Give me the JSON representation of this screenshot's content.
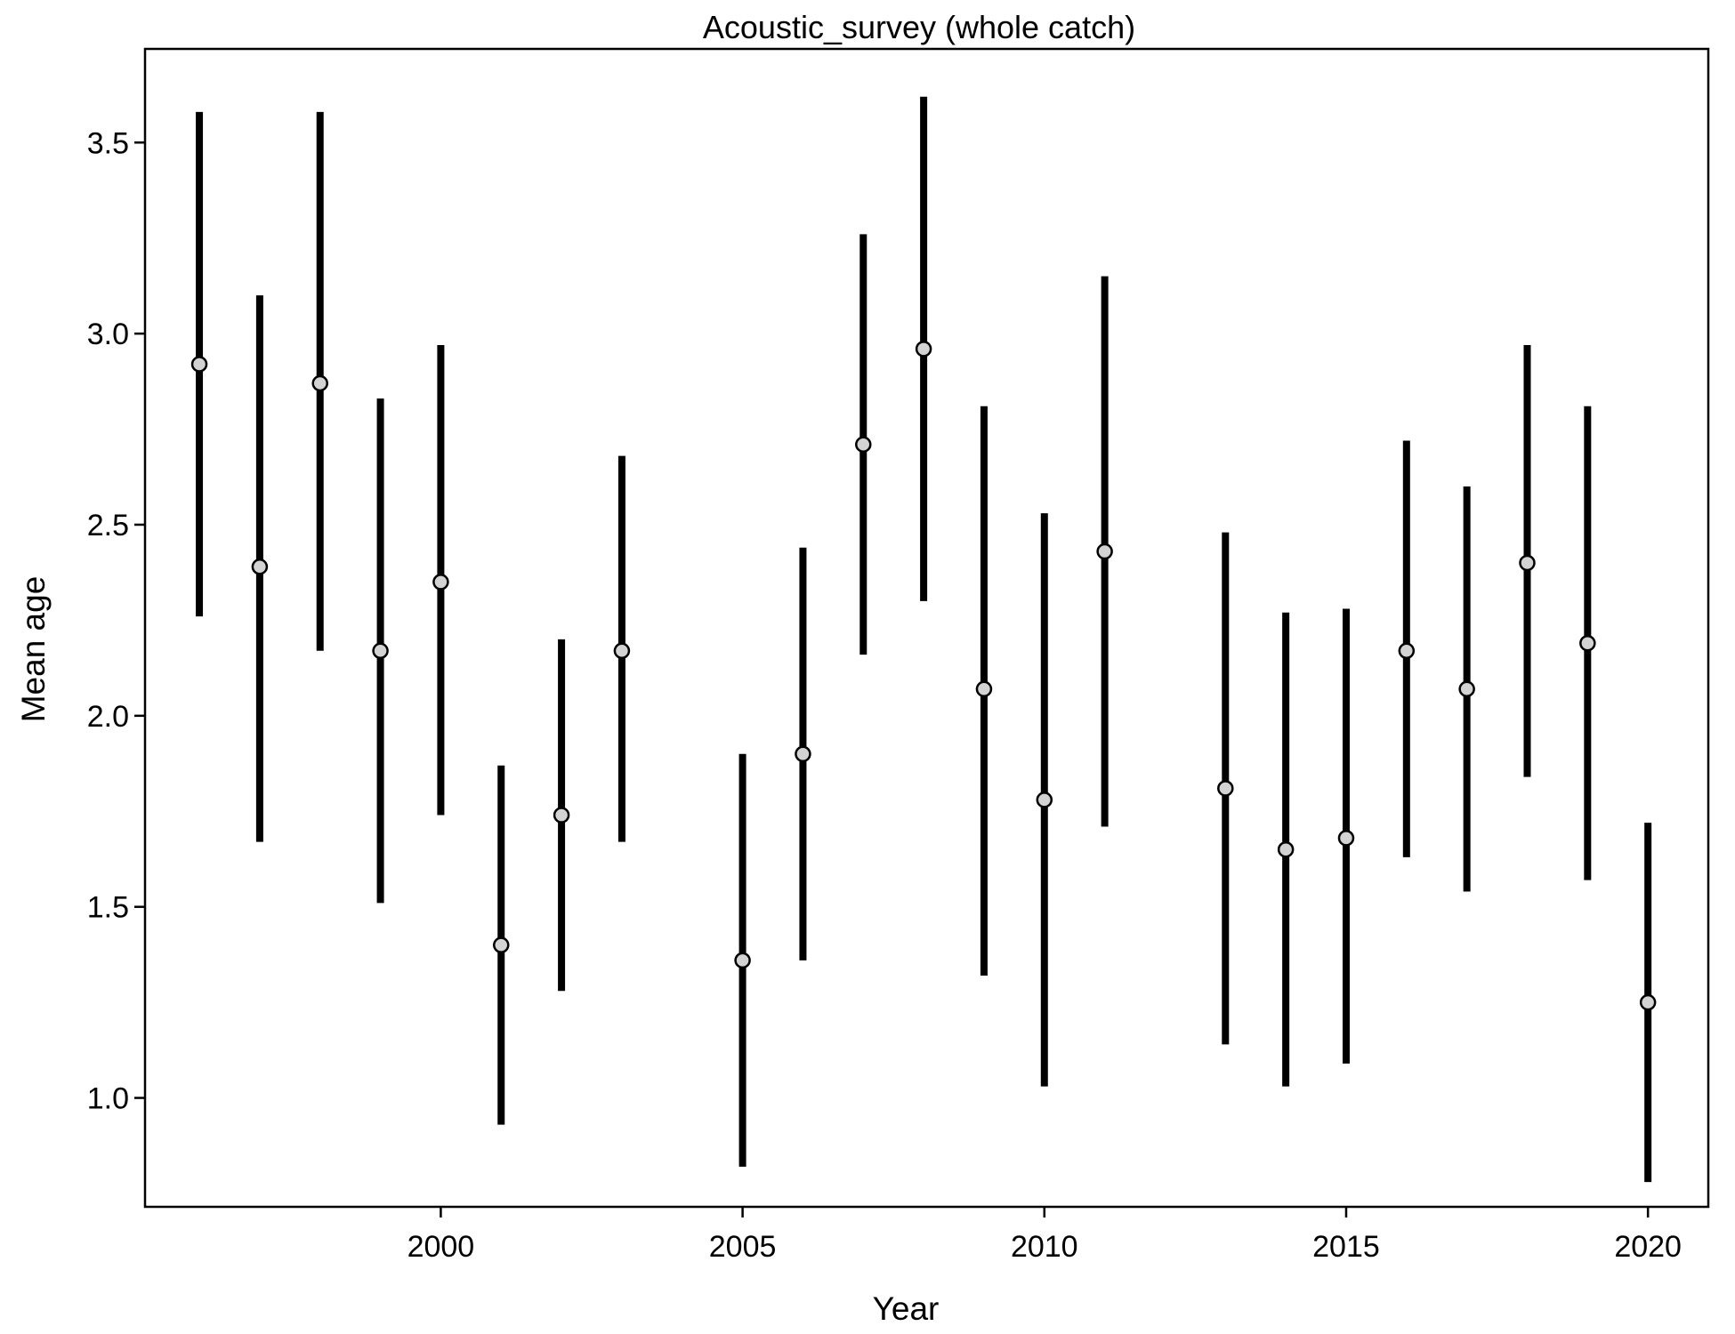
{
  "chart_data": {
    "type": "scatter",
    "subtype": "point-with-interval",
    "title": "Acoustic_survey (whole catch)",
    "xlabel": "Year",
    "ylabel": "Mean age",
    "xlim": [
      1995.1,
      2021.0
    ],
    "ylim": [
      0.715,
      3.745
    ],
    "x_ticks": [
      "2000",
      "2005",
      "2010",
      "2015",
      "2020"
    ],
    "y_ticks": [
      "1.0",
      "1.5",
      "2.0",
      "2.5",
      "3.0",
      "3.5"
    ],
    "grid": false,
    "legend": "none",
    "colors": {
      "interval": "#000000",
      "point_fill": "#d3d3d3",
      "point_stroke": "#000000"
    },
    "series": [
      {
        "points": [
          {
            "x": 1996,
            "y": 2.92,
            "lo": 2.26,
            "hi": 3.58
          },
          {
            "x": 1997,
            "y": 2.39,
            "lo": 1.67,
            "hi": 3.1
          },
          {
            "x": 1998,
            "y": 2.87,
            "lo": 2.17,
            "hi": 3.58
          },
          {
            "x": 1999,
            "y": 2.17,
            "lo": 1.51,
            "hi": 2.83
          },
          {
            "x": 2000,
            "y": 2.35,
            "lo": 1.74,
            "hi": 2.97
          },
          {
            "x": 2001,
            "y": 1.4,
            "lo": 0.93,
            "hi": 1.87
          },
          {
            "x": 2002,
            "y": 1.74,
            "lo": 1.28,
            "hi": 2.2
          },
          {
            "x": 2003,
            "y": 2.17,
            "lo": 1.67,
            "hi": 2.68
          },
          {
            "x": 2005,
            "y": 1.36,
            "lo": 0.82,
            "hi": 1.9
          },
          {
            "x": 2006,
            "y": 1.9,
            "lo": 1.36,
            "hi": 2.44
          },
          {
            "x": 2007,
            "y": 2.71,
            "lo": 2.16,
            "hi": 3.26
          },
          {
            "x": 2008,
            "y": 2.96,
            "lo": 2.3,
            "hi": 3.62
          },
          {
            "x": 2009,
            "y": 2.07,
            "lo": 1.32,
            "hi": 2.81
          },
          {
            "x": 2010,
            "y": 1.78,
            "lo": 1.03,
            "hi": 2.53
          },
          {
            "x": 2011,
            "y": 2.43,
            "lo": 1.71,
            "hi": 3.15
          },
          {
            "x": 2013,
            "y": 1.81,
            "lo": 1.14,
            "hi": 2.48
          },
          {
            "x": 2014,
            "y": 1.65,
            "lo": 1.03,
            "hi": 2.27
          },
          {
            "x": 2015,
            "y": 1.68,
            "lo": 1.09,
            "hi": 2.28
          },
          {
            "x": 2016,
            "y": 2.17,
            "lo": 1.63,
            "hi": 2.72
          },
          {
            "x": 2017,
            "y": 2.07,
            "lo": 1.54,
            "hi": 2.6
          },
          {
            "x": 2018,
            "y": 2.4,
            "lo": 1.84,
            "hi": 2.97
          },
          {
            "x": 2019,
            "y": 2.19,
            "lo": 1.57,
            "hi": 2.81
          },
          {
            "x": 2020,
            "y": 1.25,
            "lo": 0.78,
            "hi": 1.72
          }
        ]
      }
    ]
  }
}
